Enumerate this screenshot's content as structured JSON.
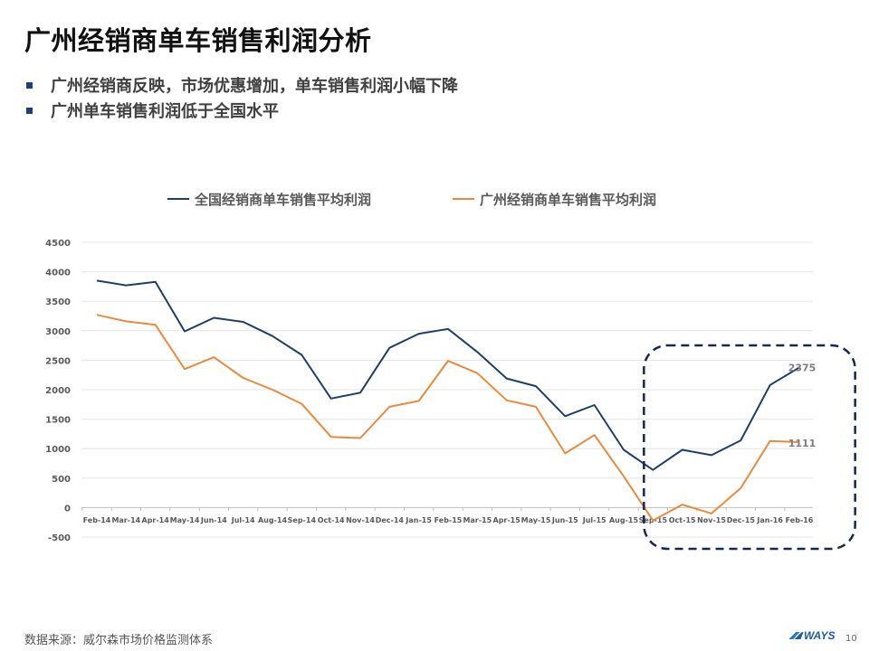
{
  "slide": {
    "title": "广州经销商单车销售利润分析",
    "bullets": [
      "广州经销商反映，市场优惠增加，单车销售利润小幅下降",
      "广州单车销售利润低于全国水平"
    ],
    "source": "数据来源：威尔森市场价格监测体系",
    "logo": "WAYS",
    "page_number": "10"
  },
  "chart_data": {
    "type": "line",
    "categories": [
      "Feb-14",
      "Mar-14",
      "Apr-14",
      "May-14",
      "Jun-14",
      "Jul-14",
      "Aug-14",
      "Sep-14",
      "Oct-14",
      "Nov-14",
      "Dec-14",
      "Jan-15",
      "Feb-15",
      "Mar-15",
      "Apr-15",
      "May-15",
      "Jun-15",
      "Jul-15",
      "Aug-15",
      "Sep-15",
      "Oct-15",
      "Nov-15",
      "Dec-15",
      "Jan-16",
      "Feb-16"
    ],
    "series": [
      {
        "name": "全国经销商单车销售平均利润",
        "color": "#1f3e66",
        "values": [
          3850,
          3770,
          3830,
          2990,
          3220,
          3150,
          2910,
          2590,
          1850,
          1950,
          2710,
          2950,
          3030,
          2640,
          2190,
          2060,
          1550,
          1740,
          980,
          640,
          980,
          890,
          1140,
          2080,
          2375
        ]
      },
      {
        "name": "广州经销商单车销售平均利润",
        "color": "#e98a3e",
        "values": [
          3270,
          3160,
          3100,
          2350,
          2550,
          2200,
          2000,
          1760,
          1200,
          1180,
          1710,
          1810,
          2490,
          2280,
          1820,
          1710,
          920,
          1230,
          530,
          -220,
          50,
          -100,
          330,
          1130,
          1111
        ]
      }
    ],
    "data_labels": [
      {
        "series": 0,
        "index": 24,
        "text": "2375"
      },
      {
        "series": 1,
        "index": 24,
        "text": "1111"
      }
    ],
    "ylim": [
      -500,
      4500
    ],
    "yticks": [
      -500,
      0,
      500,
      1000,
      1500,
      2000,
      2500,
      3000,
      3500,
      4000,
      4500
    ],
    "legend_position": "top",
    "grid": true,
    "highlight_range": [
      "Sep-15",
      "Feb-16"
    ]
  }
}
